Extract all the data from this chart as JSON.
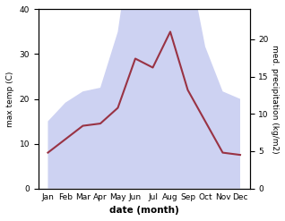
{
  "months": [
    "Jan",
    "Feb",
    "Mar",
    "Apr",
    "May",
    "Jun",
    "Jul",
    "Aug",
    "Sep",
    "Oct",
    "Nov",
    "Dec"
  ],
  "temp": [
    8,
    11,
    14,
    14.5,
    18,
    29,
    27,
    35,
    22,
    15,
    8,
    7.5
  ],
  "precip": [
    9,
    11.5,
    13,
    13.5,
    21,
    37,
    35.5,
    39,
    31,
    19,
    13,
    12
  ],
  "temp_color": "#993344",
  "precip_color": "#aab4e8",
  "precip_fill_color": "#c5caf0",
  "title": "",
  "xlabel": "date (month)",
  "ylabel_left": "max temp (C)",
  "ylabel_right": "med. precipitation (kg/m2)",
  "ylim_left": [
    0,
    40
  ],
  "ylim_right": [
    0,
    24
  ],
  "yticks_left": [
    0,
    10,
    20,
    30,
    40
  ],
  "yticks_right": [
    0,
    5,
    10,
    15,
    20
  ],
  "background_color": "#ffffff"
}
